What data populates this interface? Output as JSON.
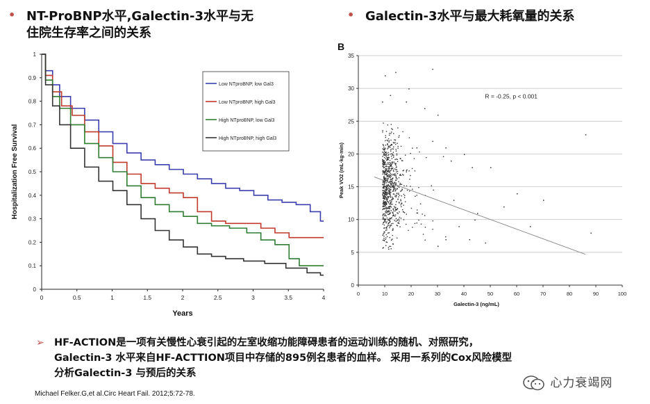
{
  "header": {
    "left_title_line1": "NT-ProBNP水平,Galectin-3水平与无",
    "left_title_line2": "住院生存率之间的关系",
    "right_title": "Galectin-3水平与最大耗氧量的关系",
    "bullet_glyph": "•"
  },
  "chart_data": [
    {
      "type": "line",
      "title": "",
      "xlabel": "Years",
      "ylabel": "Hospitalization Free Survival",
      "xlim": [
        0,
        4
      ],
      "ylim": [
        0,
        1
      ],
      "x_ticks": [
        "0",
        "0.5",
        "1",
        "1.5",
        "2",
        "2.5",
        "3",
        "3.5",
        "4"
      ],
      "y_ticks": [
        "0",
        "0.1",
        "0.2",
        "0.3",
        "0.4",
        "0.5",
        "0.6",
        "0.7",
        "0.8",
        "0.9",
        "1"
      ],
      "legend_position": "top-right",
      "series": [
        {
          "name": "Low NTproBNP, low Gal3",
          "color": "#3b3fae",
          "points": [
            [
              0,
              1
            ],
            [
              0.1,
              0.93
            ],
            [
              0.2,
              0.87
            ],
            [
              0.3,
              0.82
            ],
            [
              0.5,
              0.77
            ],
            [
              0.7,
              0.72
            ],
            [
              0.9,
              0.67
            ],
            [
              1.1,
              0.62
            ],
            [
              1.3,
              0.58
            ],
            [
              1.5,
              0.55
            ],
            [
              1.7,
              0.53
            ],
            [
              1.9,
              0.51
            ],
            [
              2.1,
              0.49
            ],
            [
              2.3,
              0.47
            ],
            [
              2.5,
              0.45
            ],
            [
              2.7,
              0.43
            ],
            [
              2.9,
              0.42
            ],
            [
              3.1,
              0.4
            ],
            [
              3.3,
              0.38
            ],
            [
              3.5,
              0.37
            ],
            [
              3.7,
              0.36
            ],
            [
              3.9,
              0.33
            ],
            [
              4.0,
              0.29
            ]
          ]
        },
        {
          "name": "Low NTproBNP, high Gal3",
          "color": "#c0392b",
          "points": [
            [
              0,
              1
            ],
            [
              0.1,
              0.91
            ],
            [
              0.2,
              0.84
            ],
            [
              0.35,
              0.78
            ],
            [
              0.5,
              0.74
            ],
            [
              0.7,
              0.67
            ],
            [
              0.9,
              0.61
            ],
            [
              1.1,
              0.54
            ],
            [
              1.3,
              0.49
            ],
            [
              1.5,
              0.45
            ],
            [
              1.7,
              0.43
            ],
            [
              1.9,
              0.41
            ],
            [
              2.1,
              0.39
            ],
            [
              2.3,
              0.33
            ],
            [
              2.5,
              0.29
            ],
            [
              2.7,
              0.28
            ],
            [
              3.0,
              0.28
            ],
            [
              3.2,
              0.26
            ],
            [
              3.4,
              0.24
            ],
            [
              3.6,
              0.22
            ],
            [
              4.0,
              0.22
            ]
          ]
        },
        {
          "name": "High NTproBNP, low Gal3",
          "color": "#2e7d32",
          "points": [
            [
              0,
              1
            ],
            [
              0.1,
              0.89
            ],
            [
              0.2,
              0.82
            ],
            [
              0.3,
              0.77
            ],
            [
              0.5,
              0.7
            ],
            [
              0.7,
              0.62
            ],
            [
              0.9,
              0.56
            ],
            [
              1.1,
              0.5
            ],
            [
              1.3,
              0.44
            ],
            [
              1.5,
              0.39
            ],
            [
              1.7,
              0.36
            ],
            [
              1.9,
              0.33
            ],
            [
              2.1,
              0.31
            ],
            [
              2.3,
              0.28
            ],
            [
              2.5,
              0.27
            ],
            [
              2.8,
              0.26
            ],
            [
              3.0,
              0.24
            ],
            [
              3.2,
              0.21
            ],
            [
              3.4,
              0.19
            ],
            [
              3.6,
              0.13
            ],
            [
              3.7,
              0.1
            ],
            [
              4.0,
              0.1
            ]
          ]
        },
        {
          "name": "High NTproBNP, high Gal3",
          "color": "#333333",
          "points": [
            [
              0,
              1
            ],
            [
              0.1,
              0.87
            ],
            [
              0.2,
              0.78
            ],
            [
              0.3,
              0.7
            ],
            [
              0.5,
              0.6
            ],
            [
              0.7,
              0.52
            ],
            [
              0.9,
              0.46
            ],
            [
              1.1,
              0.42
            ],
            [
              1.3,
              0.36
            ],
            [
              1.5,
              0.3
            ],
            [
              1.7,
              0.25
            ],
            [
              1.9,
              0.21
            ],
            [
              2.1,
              0.18
            ],
            [
              2.3,
              0.15
            ],
            [
              2.5,
              0.14
            ],
            [
              2.7,
              0.13
            ],
            [
              3.0,
              0.12
            ],
            [
              3.3,
              0.11
            ],
            [
              3.6,
              0.09
            ],
            [
              3.9,
              0.07
            ],
            [
              4.0,
              0.06
            ]
          ]
        }
      ]
    },
    {
      "type": "scatter",
      "panel_label": "B",
      "xlabel": "Galectin-3 (ng/mL)",
      "ylabel": "Peak VO2 (mL·kg·min)",
      "xlim": [
        0,
        100
      ],
      "ylim": [
        0,
        35
      ],
      "x_ticks": [
        "0",
        "10",
        "20",
        "30",
        "40",
        "50",
        "60",
        "70",
        "80",
        "90",
        "100"
      ],
      "y_ticks": [
        "0",
        "5",
        "10",
        "15",
        "20",
        "25",
        "30",
        "35"
      ],
      "grid": true,
      "annotation": "R = -0.25, p < 0.001",
      "trend_line": [
        [
          6,
          16.5
        ],
        [
          86,
          4.7
        ]
      ],
      "cluster": {
        "x_center": 13,
        "x_spread": 5,
        "y_center": 15,
        "y_spread": 4,
        "n": 820
      },
      "outliers": [
        [
          10,
          32
        ],
        [
          14,
          32.5
        ],
        [
          28,
          33
        ],
        [
          19,
          30
        ],
        [
          12,
          29
        ],
        [
          25,
          27
        ],
        [
          30,
          26
        ],
        [
          33,
          21
        ],
        [
          35,
          19
        ],
        [
          40,
          20
        ],
        [
          43,
          18
        ],
        [
          50,
          18
        ],
        [
          60,
          14
        ],
        [
          70,
          13
        ],
        [
          86,
          23
        ],
        [
          88,
          8
        ],
        [
          55,
          12
        ],
        [
          45,
          11
        ],
        [
          38,
          9
        ],
        [
          48,
          6.5
        ],
        [
          42,
          7
        ],
        [
          33,
          7
        ],
        [
          30,
          6
        ],
        [
          65,
          9
        ],
        [
          28,
          22
        ],
        [
          22,
          21
        ],
        [
          18,
          28
        ],
        [
          9,
          28
        ],
        [
          36,
          13
        ],
        [
          44,
          10
        ]
      ]
    }
  ],
  "body": {
    "arrow_glyph": "➢",
    "line1": "HF-ACTION是一项有关慢性心衰引起的左室收缩功能障碍患者的运动训练的随机、对照研究，",
    "line2": "Galectin-3 水平来自HF-ACTTION项目中存储的895例名患者的血样。 采用一系列的Cox风险模型",
    "line3": "分析Galectin-3 与预后的关系"
  },
  "citation": "Michael Felker.G,et al.Circ Heart Fail. 2012;5:72-78.",
  "watermark": {
    "text": "心力衰竭网",
    "icon": "wechat-icon"
  }
}
